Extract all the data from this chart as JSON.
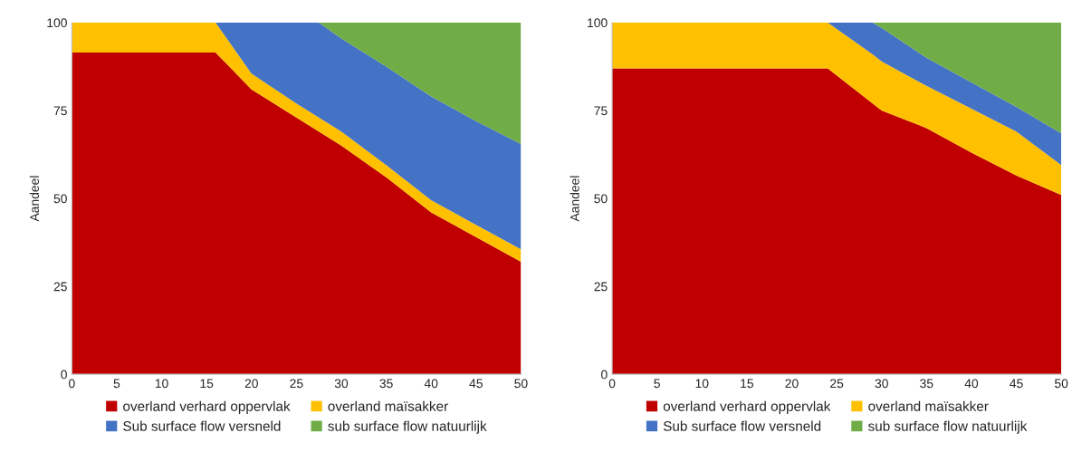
{
  "chart_data": [
    {
      "type": "area",
      "stacked": true,
      "ylabel": "Aandeel",
      "x": [
        0,
        16,
        20,
        25,
        27.5,
        30,
        35,
        40,
        45,
        50
      ],
      "xlim": [
        0,
        50
      ],
      "ylim": [
        0,
        100
      ],
      "xticks": [
        0,
        5,
        10,
        15,
        20,
        25,
        30,
        35,
        40,
        45,
        50
      ],
      "yticks": [
        0,
        25,
        50,
        75,
        100
      ],
      "grid": false,
      "legend": "bottom",
      "series": [
        {
          "name": "overland verhard oppervlak",
          "color": "#c00000",
          "values": [
            91.5,
            91.5,
            81,
            73,
            69,
            65,
            56,
            46,
            39,
            32
          ]
        },
        {
          "name": "overland maïsakker",
          "color": "#ffc000",
          "values": [
            8.5,
            8.5,
            4.5,
            4,
            4,
            4,
            3.5,
            3.5,
            3.5,
            3.5
          ]
        },
        {
          "name": "Sub surface flow versneld",
          "color": "#4472c4",
          "values": [
            0,
            0,
            14.5,
            23,
            27,
            26.5,
            28,
            29.5,
            29.5,
            30
          ]
        },
        {
          "name": "sub surface flow natuurlijk",
          "color": "#70ad47",
          "values": [
            0,
            0,
            0,
            0,
            0,
            4.5,
            12.5,
            21,
            28,
            34.5
          ]
        }
      ]
    },
    {
      "type": "area",
      "stacked": true,
      "ylabel": "Aandeel",
      "x": [
        0,
        24,
        29,
        30,
        35,
        40,
        45,
        50
      ],
      "xlim": [
        0,
        50
      ],
      "ylim": [
        0,
        100
      ],
      "xticks": [
        0,
        5,
        10,
        15,
        20,
        25,
        30,
        35,
        40,
        45,
        50
      ],
      "yticks": [
        0,
        25,
        50,
        75,
        100
      ],
      "grid": false,
      "legend": "bottom",
      "series": [
        {
          "name": "overland verhard oppervlak",
          "color": "#c00000",
          "values": [
            87,
            87,
            77,
            75,
            70,
            63,
            56.5,
            51
          ]
        },
        {
          "name": "overland maïsakker",
          "color": "#ffc000",
          "values": [
            13,
            13,
            14,
            14,
            12,
            12.5,
            12.5,
            8.5
          ]
        },
        {
          "name": "Sub surface flow versneld",
          "color": "#4472c4",
          "values": [
            0,
            0,
            9,
            9.5,
            8,
            7.5,
            7,
            9
          ]
        },
        {
          "name": "sub surface flow natuurlijk",
          "color": "#70ad47",
          "values": [
            0,
            0,
            0,
            1.5,
            10,
            17,
            24,
            31.5
          ]
        }
      ]
    }
  ]
}
